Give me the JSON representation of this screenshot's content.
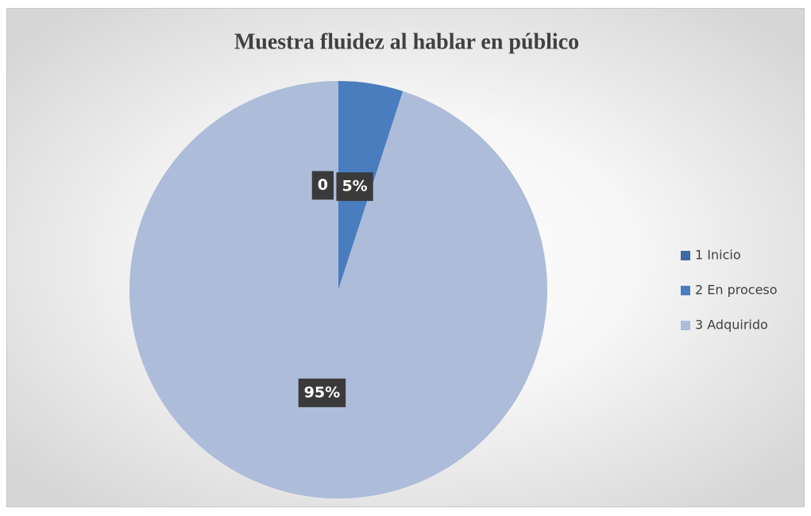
{
  "chart_data": {
    "type": "pie",
    "title": "Muestra fluidez al hablar en público",
    "categories": [
      "1 Inicio",
      "2 En proceso",
      "3 Adquirido"
    ],
    "values": [
      0,
      5,
      95
    ],
    "value_labels": [
      "0",
      "5%",
      "95%"
    ],
    "colors": [
      "#3f6aa4",
      "#4a7dbd",
      "#adbcd9"
    ],
    "legend": "right"
  }
}
